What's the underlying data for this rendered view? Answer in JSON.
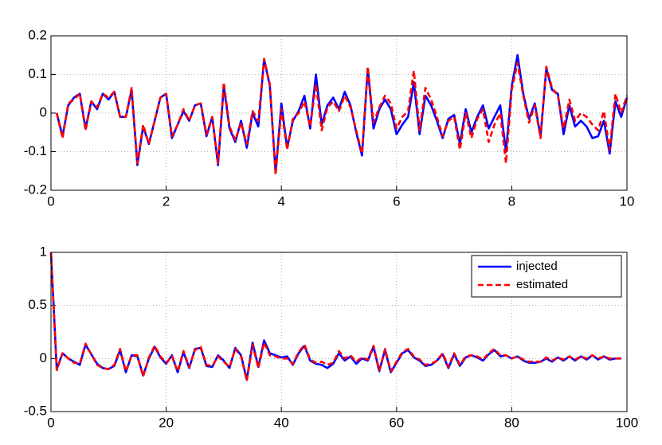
{
  "chart_data": [
    {
      "type": "line",
      "grid": true,
      "x": [
        0.1,
        0.2,
        0.3,
        0.4,
        0.5,
        0.6,
        0.7,
        0.8,
        0.9,
        1.0,
        1.1,
        1.2,
        1.3,
        1.4,
        1.5,
        1.6,
        1.7,
        1.8,
        1.9,
        2.0,
        2.1,
        2.2,
        2.3,
        2.4,
        2.5,
        2.6,
        2.7,
        2.8,
        2.9,
        3.0,
        3.1,
        3.2,
        3.3,
        3.4,
        3.5,
        3.6,
        3.7,
        3.8,
        3.9,
        4.0,
        4.1,
        4.2,
        4.3,
        4.4,
        4.5,
        4.6,
        4.7,
        4.8,
        4.9,
        5.0,
        5.1,
        5.2,
        5.3,
        5.4,
        5.5,
        5.6,
        5.7,
        5.8,
        5.9,
        6.0,
        6.1,
        6.2,
        6.3,
        6.4,
        6.5,
        6.6,
        6.7,
        6.8,
        6.9,
        7.0,
        7.1,
        7.2,
        7.3,
        7.4,
        7.5,
        7.6,
        7.7,
        7.8,
        7.9,
        8.0,
        8.1,
        8.2,
        8.3,
        8.4,
        8.5,
        8.6,
        8.7,
        8.8,
        8.9,
        9.0,
        9.1,
        9.2,
        9.3,
        9.4,
        9.5,
        9.6,
        9.7,
        9.8,
        9.9,
        10.0
      ],
      "series": [
        {
          "name": "injected",
          "color": "#0000ff",
          "linestyle": "solid",
          "values": [
            0.0,
            -0.06,
            0.02,
            0.04,
            0.05,
            -0.04,
            0.03,
            0.01,
            0.05,
            0.035,
            0.055,
            -0.01,
            -0.01,
            0.06,
            -0.135,
            -0.035,
            -0.08,
            -0.02,
            0.04,
            0.05,
            -0.065,
            -0.03,
            0.005,
            -0.02,
            0.02,
            0.025,
            -0.06,
            -0.01,
            -0.135,
            0.07,
            -0.04,
            -0.075,
            -0.02,
            -0.09,
            0.0,
            -0.035,
            0.14,
            0.07,
            -0.155,
            0.025,
            -0.09,
            -0.02,
            0.005,
            0.045,
            -0.04,
            0.1,
            -0.03,
            0.02,
            0.04,
            0.01,
            0.055,
            0.02,
            -0.05,
            -0.11,
            0.115,
            -0.04,
            0.01,
            0.035,
            0.01,
            -0.055,
            -0.03,
            -0.01,
            0.08,
            -0.055,
            0.045,
            0.02,
            -0.02,
            -0.065,
            -0.015,
            -0.005,
            -0.08,
            0.01,
            -0.05,
            -0.01,
            0.02,
            -0.04,
            -0.01,
            0.02,
            -0.1,
            0.07,
            0.15,
            0.05,
            -0.015,
            0.025,
            -0.06,
            0.115,
            0.06,
            0.05,
            -0.055,
            0.02,
            -0.035,
            -0.02,
            -0.035,
            -0.065,
            -0.06,
            -0.02,
            -0.105,
            0.03,
            -0.01,
            0.04
          ]
        },
        {
          "name": "estimated",
          "color": "#ff0000",
          "linestyle": "dashed",
          "values": [
            0.0,
            -0.065,
            0.025,
            0.035,
            0.05,
            -0.045,
            0.03,
            0.015,
            0.05,
            0.04,
            0.055,
            -0.01,
            -0.01,
            0.065,
            -0.13,
            -0.03,
            -0.08,
            -0.02,
            0.04,
            0.05,
            -0.06,
            -0.03,
            0.01,
            -0.02,
            0.02,
            0.025,
            -0.055,
            -0.01,
            -0.13,
            0.08,
            -0.035,
            -0.07,
            -0.025,
            -0.08,
            0.005,
            -0.02,
            0.14,
            0.075,
            -0.16,
            0.01,
            -0.095,
            -0.015,
            0.0,
            0.03,
            -0.035,
            0.075,
            -0.045,
            0.015,
            0.03,
            0.005,
            0.045,
            0.015,
            -0.045,
            -0.105,
            0.12,
            -0.025,
            0.015,
            0.045,
            0.025,
            -0.04,
            -0.01,
            0.005,
            0.11,
            -0.045,
            0.065,
            0.035,
            -0.01,
            -0.06,
            -0.02,
            -0.01,
            -0.095,
            0.0,
            -0.065,
            -0.015,
            0.01,
            -0.075,
            -0.03,
            0.0,
            -0.13,
            0.06,
            0.13,
            0.045,
            -0.025,
            0.02,
            -0.065,
            0.12,
            0.065,
            0.045,
            -0.04,
            0.035,
            -0.02,
            0.0,
            -0.01,
            -0.03,
            -0.045,
            0.005,
            -0.095,
            0.05,
            0.0,
            0.045
          ]
        }
      ],
      "xlim": [
        0,
        10
      ],
      "xticks": [
        0,
        2,
        4,
        6,
        8,
        10
      ],
      "ylim": [
        -0.2,
        0.2
      ],
      "yticks": [
        -0.2,
        -0.1,
        0,
        0.1,
        0.2
      ]
    },
    {
      "type": "line",
      "grid": true,
      "legend": "upper right",
      "x": [
        0,
        1,
        2,
        3,
        4,
        5,
        6,
        7,
        8,
        9,
        10,
        11,
        12,
        13,
        14,
        15,
        16,
        17,
        18,
        19,
        20,
        21,
        22,
        23,
        24,
        25,
        26,
        27,
        28,
        29,
        30,
        31,
        32,
        33,
        34,
        35,
        36,
        37,
        38,
        39,
        40,
        41,
        42,
        43,
        44,
        45,
        46,
        47,
        48,
        49,
        50,
        51,
        52,
        53,
        54,
        55,
        56,
        57,
        58,
        59,
        60,
        61,
        62,
        63,
        64,
        65,
        66,
        67,
        68,
        69,
        70,
        71,
        72,
        73,
        74,
        75,
        76,
        77,
        78,
        79,
        80,
        81,
        82,
        83,
        84,
        85,
        86,
        87,
        88,
        89,
        90,
        91,
        92,
        93,
        94,
        95,
        96,
        97,
        98,
        99
      ],
      "series": [
        {
          "name": "injected",
          "color": "#0000ff",
          "linestyle": "solid",
          "values": [
            1.0,
            -0.1,
            0.05,
            0.0,
            -0.03,
            -0.06,
            0.13,
            0.04,
            -0.05,
            -0.09,
            -0.1,
            -0.07,
            0.08,
            -0.13,
            0.03,
            0.02,
            -0.16,
            0.0,
            0.11,
            0.01,
            -0.05,
            0.03,
            -0.13,
            0.06,
            -0.09,
            0.09,
            0.1,
            -0.07,
            -0.08,
            0.03,
            -0.02,
            -0.09,
            0.1,
            0.03,
            -0.2,
            0.15,
            -0.08,
            0.17,
            0.05,
            0.03,
            0.01,
            0.02,
            -0.06,
            0.05,
            0.12,
            -0.02,
            -0.05,
            -0.06,
            -0.09,
            -0.05,
            0.05,
            -0.02,
            0.02,
            -0.05,
            0.0,
            -0.02,
            0.11,
            -0.12,
            0.08,
            -0.13,
            -0.04,
            0.05,
            0.08,
            0.01,
            -0.02,
            -0.07,
            -0.06,
            -0.02,
            0.04,
            -0.09,
            0.04,
            -0.07,
            0.01,
            0.03,
            0.01,
            -0.02,
            0.04,
            0.08,
            0.02,
            0.03,
            0.0,
            0.02,
            -0.02,
            -0.04,
            -0.04,
            -0.03,
            0.0,
            -0.03,
            0.01,
            -0.02,
            0.02,
            -0.02,
            0.02,
            -0.01,
            0.03,
            -0.01,
            0.02,
            -0.01,
            0.0,
            0.0
          ]
        },
        {
          "name": "estimated",
          "color": "#ff0000",
          "linestyle": "dashed",
          "values": [
            1.0,
            -0.11,
            0.05,
            0.0,
            -0.04,
            -0.05,
            0.14,
            0.04,
            -0.06,
            -0.09,
            -0.1,
            -0.06,
            0.09,
            -0.12,
            0.03,
            0.03,
            -0.17,
            0.01,
            0.12,
            0.02,
            -0.04,
            0.02,
            -0.12,
            0.07,
            -0.08,
            0.08,
            0.11,
            -0.06,
            -0.07,
            0.02,
            -0.03,
            -0.08,
            0.09,
            0.02,
            -0.21,
            0.13,
            -0.09,
            0.15,
            0.03,
            0.02,
            0.0,
            0.0,
            -0.05,
            0.06,
            0.13,
            -0.01,
            -0.04,
            -0.03,
            -0.06,
            -0.04,
            0.07,
            0.0,
            0.03,
            -0.03,
            0.01,
            -0.01,
            0.12,
            -0.11,
            0.09,
            -0.12,
            -0.03,
            0.06,
            0.09,
            0.02,
            -0.01,
            -0.06,
            -0.05,
            -0.02,
            0.05,
            -0.08,
            0.05,
            -0.06,
            0.02,
            0.03,
            0.02,
            -0.01,
            0.05,
            0.09,
            0.03,
            0.03,
            0.0,
            0.02,
            -0.01,
            -0.03,
            -0.03,
            -0.03,
            0.01,
            -0.02,
            0.01,
            -0.01,
            0.02,
            -0.01,
            0.02,
            0.0,
            0.03,
            0.0,
            0.02,
            0.0,
            0.0,
            0.0
          ]
        }
      ],
      "xlim": [
        0,
        100
      ],
      "xticks": [
        0,
        20,
        40,
        60,
        80,
        100
      ],
      "ylim": [
        -0.5,
        1
      ],
      "yticks": [
        -0.5,
        0,
        0.5,
        1
      ]
    }
  ]
}
